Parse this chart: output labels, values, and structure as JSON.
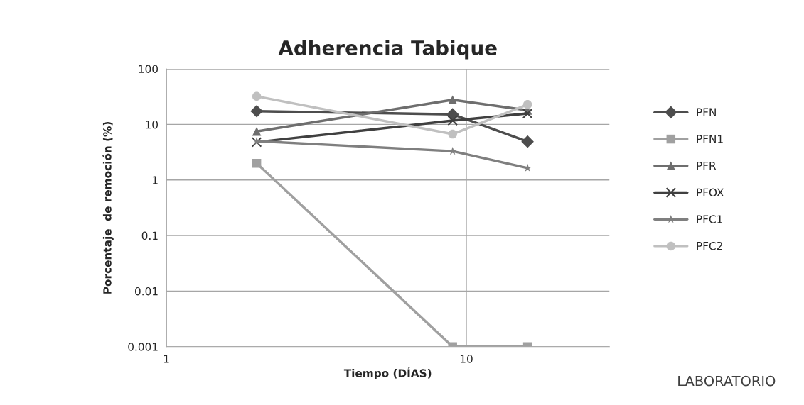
{
  "chart_data": {
    "type": "line",
    "title": "Adherencia Tabique",
    "xlabel": "Tiempo (DÍAS)",
    "ylabel": "Porcentaje  de remoción (%)",
    "x": [
      2,
      9,
      16
    ],
    "log": "xy",
    "xlim": [
      1,
      30
    ],
    "xticks": [
      1,
      10
    ],
    "ylim": [
      0.001,
      100
    ],
    "yticks": [
      0.001,
      0.01,
      0.1,
      1,
      10,
      100
    ],
    "grid": true,
    "legend": "right",
    "series": [
      {
        "name": "PFN",
        "color": "#4d4d4d",
        "marker": "diamond",
        "values": [
          17.3,
          15.2,
          4.9
        ]
      },
      {
        "name": "PFN1",
        "color": "#a0a0a0",
        "marker": "square",
        "values": [
          2.0,
          0.001,
          0.001
        ]
      },
      {
        "name": "PFR",
        "color": "#6e6e6e",
        "marker": "triangle",
        "values": [
          7.5,
          27.7,
          18
        ]
      },
      {
        "name": "PFOX",
        "color": "#404040",
        "marker": "cross",
        "values": [
          4.8,
          11.7,
          15.7
        ]
      },
      {
        "name": "PFC1",
        "color": "#7f7f7f",
        "marker": "star",
        "values": [
          5.0,
          3.3,
          1.64
        ]
      },
      {
        "name": "PFC2",
        "color": "#c0c0c0",
        "marker": "circle",
        "values": [
          32,
          6.7,
          22.8
        ]
      }
    ],
    "annotations": [
      "LABORATORIO"
    ]
  }
}
